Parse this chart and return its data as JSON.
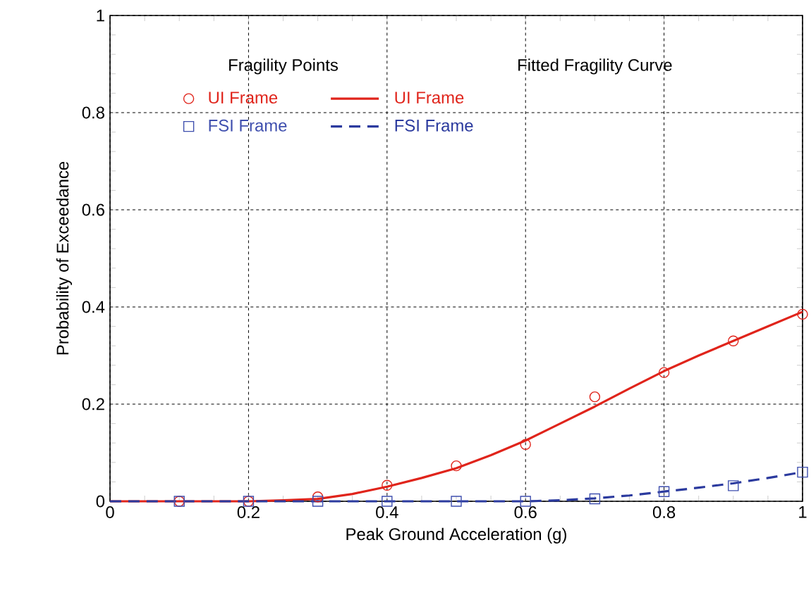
{
  "chart_data": {
    "type": "line",
    "xlabel": "Peak Ground Acceleration (g)",
    "ylabel": "Probability of Exceedance",
    "xlim": [
      0,
      1
    ],
    "ylim": [
      0,
      1
    ],
    "xticks": [
      0,
      0.2,
      0.4,
      0.6,
      0.8,
      1
    ],
    "yticks": [
      0,
      0.2,
      0.4,
      0.6,
      0.8,
      1
    ],
    "grid": true,
    "legend": "top",
    "annotations": [
      "Fragility Points",
      "Fitted Fragility Curve"
    ],
    "series": [
      {
        "name": "UI Frame",
        "type": "scatter",
        "marker": "circle",
        "color": "#e0241b",
        "x": [
          0.1,
          0.2,
          0.3,
          0.4,
          0.5,
          0.6,
          0.7,
          0.8,
          0.9,
          1.0
        ],
        "values": [
          0,
          0,
          0.009,
          0.033,
          0.073,
          0.117,
          0.215,
          0.265,
          0.33,
          0.385
        ]
      },
      {
        "name": "UI Frame",
        "type": "line",
        "line_style": "solid",
        "color": "#e0241b",
        "x": [
          0,
          0.1,
          0.2,
          0.25,
          0.3,
          0.35,
          0.4,
          0.45,
          0.5,
          0.55,
          0.6,
          0.65,
          0.7,
          0.75,
          0.8,
          0.85,
          0.9,
          0.95,
          1.0
        ],
        "values": [
          0,
          0,
          0,
          0.002,
          0.005,
          0.015,
          0.03,
          0.048,
          0.068,
          0.095,
          0.125,
          0.16,
          0.195,
          0.232,
          0.268,
          0.3,
          0.33,
          0.36,
          0.39
        ]
      },
      {
        "name": "FSI Frame",
        "type": "scatter",
        "marker": "square",
        "color": "#3f4fae",
        "x": [
          0.1,
          0.2,
          0.3,
          0.4,
          0.5,
          0.6,
          0.7,
          0.8,
          0.9,
          1.0
        ],
        "values": [
          0,
          0,
          0,
          0,
          0,
          0,
          0.005,
          0.02,
          0.032,
          0.06
        ]
      },
      {
        "name": "FSI Frame",
        "type": "line",
        "line_style": "dashed",
        "color": "#2b3a9e",
        "x": [
          0,
          0.1,
          0.2,
          0.3,
          0.4,
          0.5,
          0.6,
          0.65,
          0.7,
          0.75,
          0.8,
          0.85,
          0.9,
          0.95,
          1.0
        ],
        "values": [
          0,
          0,
          0,
          0,
          0,
          0,
          0,
          0.002,
          0.006,
          0.012,
          0.02,
          0.028,
          0.037,
          0.048,
          0.06
        ]
      }
    ]
  }
}
